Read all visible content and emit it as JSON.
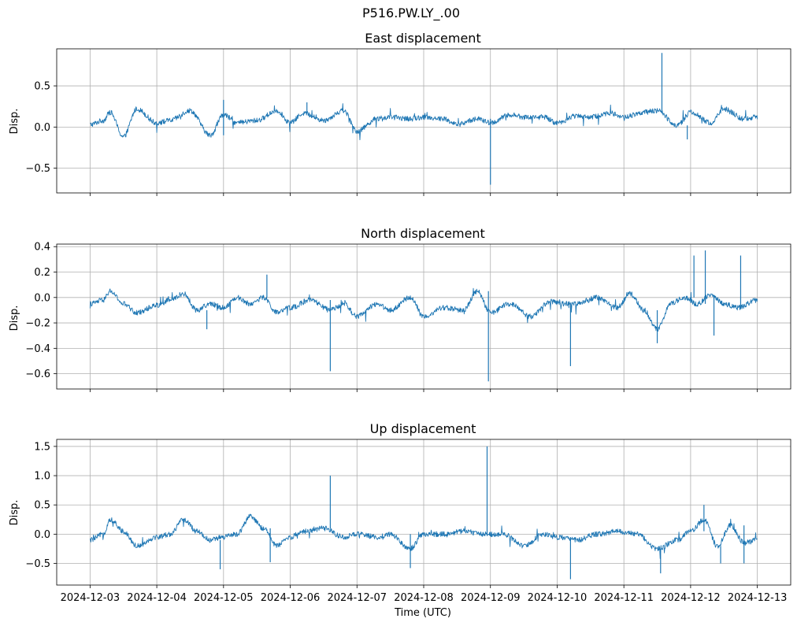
{
  "figure_title": "P516.PW.LY_.00",
  "colors": {
    "series": "#1f77b4",
    "grid": "#b0b0b0"
  },
  "chart_data": [
    {
      "type": "line",
      "title": "East displacement",
      "xlabel": "",
      "ylabel": "Disp.",
      "ylim": [
        -0.8,
        0.95
      ],
      "yticks": [
        -0.5,
        0.0,
        0.5
      ],
      "ytick_labels": [
        "−0.5",
        "0.0",
        "0.5"
      ],
      "grid": true,
      "x": [
        0,
        0.2,
        0.3,
        0.5,
        0.7,
        1.0,
        1.2,
        1.5,
        1.8,
        2.0,
        2.2,
        2.5,
        2.8,
        3.0,
        3.2,
        3.5,
        3.8,
        4.0,
        4.3,
        4.5,
        4.8,
        5.0,
        5.3,
        5.5,
        5.8,
        6.0,
        6.3,
        6.5,
        6.8,
        7.0,
        7.3,
        7.5,
        7.8,
        8.0,
        8.3,
        8.5,
        8.8,
        9.0,
        9.3,
        9.5,
        9.8,
        10.0
      ],
      "values": [
        0.03,
        0.08,
        0.18,
        -0.12,
        0.22,
        0.05,
        0.08,
        0.2,
        -0.1,
        0.15,
        0.05,
        0.08,
        0.2,
        0.05,
        0.17,
        0.08,
        0.2,
        -0.05,
        0.1,
        0.12,
        0.1,
        0.12,
        0.1,
        0.03,
        0.1,
        0.05,
        0.15,
        0.12,
        0.12,
        0.05,
        0.14,
        0.12,
        0.17,
        0.12,
        0.18,
        0.2,
        0.02,
        0.18,
        0.05,
        0.22,
        0.1,
        0.12
      ],
      "spikes": [
        {
          "x": 6.0,
          "y": -0.7
        },
        {
          "x": 8.57,
          "y": 0.9
        },
        {
          "x": 2.0,
          "y": 0.33
        },
        {
          "x": 3.25,
          "y": 0.3
        },
        {
          "x": 8.95,
          "y": -0.15
        }
      ]
    },
    {
      "type": "line",
      "title": "North displacement",
      "xlabel": "",
      "ylabel": "Disp.",
      "ylim": [
        -0.72,
        0.42
      ],
      "yticks": [
        -0.6,
        -0.4,
        -0.2,
        0.0,
        0.2,
        0.4
      ],
      "ytick_labels": [
        "−0.6",
        "−0.4",
        "−0.2",
        "0.0",
        "0.2",
        "0.4"
      ],
      "grid": true,
      "x": [
        0,
        0.2,
        0.3,
        0.5,
        0.7,
        1.0,
        1.2,
        1.4,
        1.6,
        1.8,
        2.0,
        2.2,
        2.4,
        2.6,
        2.8,
        3.0,
        3.3,
        3.6,
        3.8,
        4.0,
        4.3,
        4.5,
        4.8,
        5.0,
        5.3,
        5.6,
        5.8,
        6.0,
        6.3,
        6.6,
        6.9,
        7.1,
        7.3,
        7.6,
        7.9,
        8.1,
        8.3,
        8.5,
        8.7,
        8.9,
        9.1,
        9.3,
        9.5,
        9.7,
        10.0
      ],
      "values": [
        -0.05,
        -0.02,
        0.05,
        -0.05,
        -0.12,
        -0.06,
        -0.02,
        0.03,
        -0.1,
        -0.05,
        -0.08,
        0.0,
        -0.05,
        0.0,
        -0.12,
        -0.08,
        -0.02,
        -0.1,
        -0.05,
        -0.15,
        -0.05,
        -0.1,
        0.0,
        -0.15,
        -0.08,
        -0.1,
        0.05,
        -0.12,
        -0.05,
        -0.15,
        -0.03,
        -0.05,
        -0.05,
        0.0,
        -0.08,
        0.03,
        -0.1,
        -0.25,
        -0.05,
        0.0,
        -0.05,
        0.02,
        -0.05,
        -0.08,
        -0.02
      ],
      "spikes": [
        {
          "x": 3.6,
          "y": -0.58
        },
        {
          "x": 5.97,
          "y": -0.66
        },
        {
          "x": 7.2,
          "y": -0.54
        },
        {
          "x": 9.05,
          "y": 0.33
        },
        {
          "x": 9.22,
          "y": 0.37
        },
        {
          "x": 9.75,
          "y": 0.33
        },
        {
          "x": 8.5,
          "y": -0.36
        },
        {
          "x": 1.75,
          "y": -0.25
        },
        {
          "x": 9.35,
          "y": -0.3
        },
        {
          "x": 2.65,
          "y": 0.18
        }
      ]
    },
    {
      "type": "line",
      "title": "Up displacement",
      "xlabel": "Time (UTC)",
      "ylabel": "Disp.",
      "ylim": [
        -0.87,
        1.62
      ],
      "yticks": [
        -0.5,
        0.0,
        0.5,
        1.0,
        1.5
      ],
      "ytick_labels": [
        "−0.5",
        "0.0",
        "0.5",
        "1.0",
        "1.5"
      ],
      "grid": true,
      "x": [
        0,
        0.2,
        0.3,
        0.5,
        0.7,
        1.0,
        1.2,
        1.4,
        1.6,
        1.8,
        2.0,
        2.2,
        2.4,
        2.6,
        2.8,
        3.0,
        3.2,
        3.5,
        3.8,
        4.0,
        4.3,
        4.5,
        4.8,
        5.0,
        5.3,
        5.6,
        5.9,
        6.2,
        6.5,
        6.8,
        7.0,
        7.3,
        7.6,
        7.9,
        8.2,
        8.5,
        8.8,
        9.0,
        9.2,
        9.4,
        9.6,
        9.8,
        10.0
      ],
      "values": [
        -0.1,
        0.0,
        0.25,
        0.05,
        -0.2,
        -0.05,
        0.0,
        0.25,
        0.05,
        -0.1,
        -0.05,
        0.0,
        0.3,
        0.1,
        -0.2,
        -0.05,
        0.05,
        0.1,
        -0.05,
        0.0,
        -0.05,
        0.0,
        -0.25,
        0.0,
        0.0,
        0.05,
        0.0,
        0.0,
        -0.2,
        0.0,
        -0.05,
        -0.1,
        0.0,
        0.05,
        0.0,
        -0.25,
        -0.1,
        0.05,
        0.25,
        -0.2,
        0.15,
        -0.15,
        -0.1
      ],
      "spikes": [
        {
          "x": 3.6,
          "y": 1.0
        },
        {
          "x": 5.95,
          "y": 1.5
        },
        {
          "x": 7.2,
          "y": -0.77
        },
        {
          "x": 8.55,
          "y": -0.67
        },
        {
          "x": 9.2,
          "y": 0.5
        },
        {
          "x": 1.95,
          "y": -0.6
        },
        {
          "x": 2.7,
          "y": -0.48
        },
        {
          "x": 4.8,
          "y": -0.58
        },
        {
          "x": 9.45,
          "y": -0.5
        },
        {
          "x": 9.8,
          "y": -0.5
        }
      ],
      "xtick_labels": [
        "2024-12-03",
        "2024-12-04",
        "2024-12-05",
        "2024-12-06",
        "2024-12-07",
        "2024-12-08",
        "2024-12-09",
        "2024-12-10",
        "2024-12-11",
        "2024-12-12",
        "2024-12-13"
      ]
    }
  ]
}
